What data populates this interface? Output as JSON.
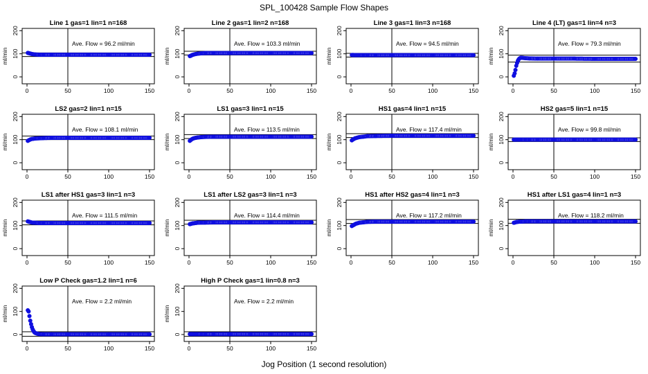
{
  "figure": {
    "title": "SPL_100428  Sample Flow Shapes",
    "xlabel": "Jog Position (1 second resolution)"
  },
  "colors": {
    "points": "#1010e0",
    "lines": "#000000",
    "background": "#ffffff"
  },
  "chart_data": [
    {
      "type": "scatter",
      "title": "Line 1 gas=1 lin=1 n=168",
      "ylabel": "ml/min",
      "xlim": [
        0,
        150
      ],
      "ylim": [
        -30,
        210
      ],
      "xticks": [
        0,
        50,
        100,
        150
      ],
      "yticks": [
        0,
        100,
        200
      ],
      "vline": 50,
      "hlines": [
        88,
        104
      ],
      "annotation": "Ave. Flow =  96.2  ml/min",
      "series": [
        {
          "x": [
            1,
            2,
            3,
            4,
            5,
            6,
            8,
            10,
            15,
            20,
            30,
            50,
            75,
            100,
            125,
            150
          ],
          "y": [
            104,
            103,
            102,
            101,
            100,
            99,
            98,
            97,
            96,
            96,
            96,
            96,
            96,
            96,
            96,
            96
          ]
        }
      ]
    },
    {
      "type": "scatter",
      "title": "Line 2 gas=1 lin=2 n=168",
      "ylabel": "ml/min",
      "xlim": [
        0,
        150
      ],
      "ylim": [
        -30,
        210
      ],
      "xticks": [
        0,
        50,
        100,
        150
      ],
      "yticks": [
        0,
        100,
        200
      ],
      "vline": 50,
      "hlines": [
        95,
        111
      ],
      "annotation": "Ave. Flow =  103.3  ml/min",
      "series": [
        {
          "x": [
            1,
            2,
            3,
            4,
            5,
            6,
            8,
            10,
            15,
            20,
            30,
            50,
            75,
            100,
            125,
            150
          ],
          "y": [
            90,
            91,
            93,
            95,
            96,
            97,
            99,
            100,
            102,
            103,
            103,
            103,
            103,
            103,
            103,
            103
          ]
        }
      ]
    },
    {
      "type": "scatter",
      "title": "Line 3 gas=1 lin=3 n=168",
      "ylabel": "ml/min",
      "xlim": [
        0,
        150
      ],
      "ylim": [
        -30,
        210
      ],
      "xticks": [
        0,
        50,
        100,
        150
      ],
      "yticks": [
        0,
        100,
        200
      ],
      "vline": 50,
      "hlines": [
        86,
        102
      ],
      "annotation": "Ave. Flow =  94.5  ml/min",
      "series": [
        {
          "x": [
            1,
            2,
            3,
            4,
            5,
            6,
            8,
            10,
            15,
            20,
            30,
            50,
            75,
            100,
            125,
            150
          ],
          "y": [
            95,
            95,
            95,
            94,
            94,
            94,
            94,
            94,
            94,
            94,
            94,
            94,
            94,
            94,
            94,
            94
          ]
        }
      ]
    },
    {
      "type": "scatter",
      "title": "Line 4 (LT) gas=1 lin=4 n=3",
      "ylabel": "ml/min",
      "xlim": [
        0,
        150
      ],
      "ylim": [
        -30,
        210
      ],
      "xticks": [
        0,
        50,
        100,
        150
      ],
      "yticks": [
        0,
        100,
        200
      ],
      "vline": 50,
      "hlines": [
        64,
        94
      ],
      "annotation": "Ave. Flow =  79.3  ml/min",
      "series": [
        {
          "x": [
            1,
            2,
            3,
            4,
            5,
            6,
            7,
            8,
            9,
            10,
            12,
            15,
            20,
            30,
            50,
            75,
            100,
            125,
            150
          ],
          "y": [
            5,
            15,
            30,
            48,
            60,
            70,
            76,
            80,
            82,
            83,
            82,
            81,
            80,
            79,
            79,
            79,
            78,
            78,
            78
          ]
        }
      ]
    },
    {
      "type": "scatter",
      "title": "LS2 gas=2 lin=1 n=15",
      "ylabel": "ml/min",
      "xlim": [
        0,
        150
      ],
      "ylim": [
        -30,
        210
      ],
      "xticks": [
        0,
        50,
        100,
        150
      ],
      "yticks": [
        0,
        100,
        200
      ],
      "vline": 50,
      "hlines": [
        100,
        116
      ],
      "annotation": "Ave. Flow =  108.1  ml/min",
      "series": [
        {
          "x": [
            1,
            2,
            3,
            4,
            5,
            6,
            8,
            10,
            15,
            20,
            30,
            50,
            75,
            100,
            125,
            150
          ],
          "y": [
            95,
            97,
            99,
            101,
            102,
            103,
            104,
            105,
            106,
            107,
            108,
            108,
            108,
            108,
            108,
            108
          ]
        }
      ]
    },
    {
      "type": "scatter",
      "title": "LS1 gas=3 lin=1 n=15",
      "ylabel": "ml/min",
      "xlim": [
        0,
        150
      ],
      "ylim": [
        -30,
        210
      ],
      "xticks": [
        0,
        50,
        100,
        150
      ],
      "yticks": [
        0,
        100,
        200
      ],
      "vline": 50,
      "hlines": [
        105,
        122
      ],
      "annotation": "Ave. Flow =  113.5  ml/min",
      "series": [
        {
          "x": [
            1,
            2,
            3,
            4,
            5,
            6,
            8,
            10,
            15,
            20,
            30,
            50,
            75,
            100,
            125,
            150
          ],
          "y": [
            95,
            98,
            101,
            103,
            105,
            106,
            108,
            109,
            111,
            112,
            113,
            113,
            113,
            113,
            113,
            113
          ]
        }
      ]
    },
    {
      "type": "scatter",
      "title": "HS1 gas=4 lin=1 n=15",
      "ylabel": "ml/min",
      "xlim": [
        0,
        150
      ],
      "ylim": [
        -30,
        210
      ],
      "xticks": [
        0,
        50,
        100,
        150
      ],
      "yticks": [
        0,
        100,
        200
      ],
      "vline": 50,
      "hlines": [
        109,
        126
      ],
      "annotation": "Ave. Flow =  117.4  ml/min",
      "series": [
        {
          "x": [
            1,
            2,
            3,
            4,
            5,
            6,
            8,
            10,
            15,
            20,
            30,
            50,
            75,
            100,
            125,
            150
          ],
          "y": [
            97,
            100,
            102,
            104,
            106,
            107,
            109,
            111,
            113,
            115,
            116,
            117,
            117,
            117,
            117,
            117
          ]
        }
      ]
    },
    {
      "type": "scatter",
      "title": "HS2 gas=5 lin=1 n=15",
      "ylabel": "ml/min",
      "xlim": [
        0,
        150
      ],
      "ylim": [
        -30,
        210
      ],
      "xticks": [
        0,
        50,
        100,
        150
      ],
      "yticks": [
        0,
        100,
        200
      ],
      "vline": 50,
      "hlines": [
        92,
        108
      ],
      "annotation": "Ave. Flow =  99.8  ml/min",
      "series": [
        {
          "x": [
            1,
            2,
            3,
            4,
            5,
            6,
            8,
            10,
            15,
            20,
            30,
            50,
            75,
            100,
            125,
            150
          ],
          "y": [
            100,
            100,
            100,
            100,
            100,
            100,
            100,
            100,
            100,
            100,
            100,
            100,
            100,
            100,
            100,
            100
          ]
        }
      ]
    },
    {
      "type": "scatter",
      "title": "LS1 after HS1 gas=3 lin=1 n=3",
      "ylabel": "ml/min",
      "xlim": [
        0,
        150
      ],
      "ylim": [
        -30,
        210
      ],
      "xticks": [
        0,
        50,
        100,
        150
      ],
      "yticks": [
        0,
        100,
        200
      ],
      "vline": 50,
      "hlines": [
        103,
        120
      ],
      "annotation": "Ave. Flow =  111.5  ml/min",
      "series": [
        {
          "x": [
            1,
            2,
            3,
            4,
            5,
            6,
            8,
            10,
            15,
            20,
            30,
            50,
            75,
            100,
            125,
            150
          ],
          "y": [
            118,
            117,
            116,
            115,
            114,
            113,
            112,
            112,
            111,
            111,
            111,
            111,
            111,
            111,
            111,
            111
          ]
        }
      ]
    },
    {
      "type": "scatter",
      "title": "LS1 after LS2 gas=3 lin=1 n=3",
      "ylabel": "ml/min",
      "xlim": [
        0,
        150
      ],
      "ylim": [
        -30,
        210
      ],
      "xticks": [
        0,
        50,
        100,
        150
      ],
      "yticks": [
        0,
        100,
        200
      ],
      "vline": 50,
      "hlines": [
        106,
        123
      ],
      "annotation": "Ave. Flow =  114.4  ml/min",
      "series": [
        {
          "x": [
            1,
            2,
            3,
            4,
            5,
            6,
            8,
            10,
            15,
            20,
            30,
            50,
            75,
            100,
            125,
            150
          ],
          "y": [
            106,
            107,
            108,
            109,
            110,
            110,
            111,
            112,
            113,
            113,
            114,
            114,
            114,
            114,
            114,
            114
          ]
        }
      ]
    },
    {
      "type": "scatter",
      "title": "HS1 after HS2 gas=4 lin=1 n=3",
      "ylabel": "ml/min",
      "xlim": [
        0,
        150
      ],
      "ylim": [
        -30,
        210
      ],
      "xticks": [
        0,
        50,
        100,
        150
      ],
      "yticks": [
        0,
        100,
        200
      ],
      "vline": 50,
      "hlines": [
        109,
        126
      ],
      "annotation": "Ave. Flow =  117.2  ml/min",
      "series": [
        {
          "x": [
            1,
            2,
            3,
            4,
            5,
            6,
            8,
            10,
            15,
            20,
            30,
            50,
            75,
            100,
            125,
            150
          ],
          "y": [
            98,
            100,
            102,
            104,
            106,
            108,
            110,
            112,
            114,
            116,
            117,
            117,
            117,
            117,
            117,
            117
          ]
        }
      ]
    },
    {
      "type": "scatter",
      "title": "HS1 after LS1 gas=4 lin=1 n=3",
      "ylabel": "ml/min",
      "xlim": [
        0,
        150
      ],
      "ylim": [
        -30,
        210
      ],
      "xticks": [
        0,
        50,
        100,
        150
      ],
      "yticks": [
        0,
        100,
        200
      ],
      "vline": 50,
      "hlines": [
        110,
        127
      ],
      "annotation": "Ave. Flow =  118.2  ml/min",
      "series": [
        {
          "x": [
            1,
            2,
            3,
            4,
            5,
            6,
            8,
            10,
            15,
            20,
            30,
            50,
            75,
            100,
            125,
            150
          ],
          "y": [
            112,
            113,
            114,
            115,
            116,
            116,
            117,
            117,
            118,
            118,
            118,
            118,
            118,
            118,
            118,
            118
          ]
        }
      ]
    },
    {
      "type": "scatter",
      "title": "Low P Check gas=1.2 lin=1 n=6",
      "ylabel": "ml/min",
      "xlim": [
        0,
        150
      ],
      "ylim": [
        -30,
        210
      ],
      "xticks": [
        0,
        50,
        100,
        150
      ],
      "yticks": [
        0,
        100,
        200
      ],
      "vline": 50,
      "hlines": [
        -8,
        12
      ],
      "annotation": "Ave. Flow =  2.2  ml/min",
      "series": [
        {
          "x": [
            1,
            2,
            3,
            4,
            5,
            6,
            7,
            8,
            9,
            10,
            12,
            15,
            20,
            30,
            50,
            75,
            100,
            125,
            150
          ],
          "y": [
            105,
            100,
            80,
            60,
            45,
            32,
            22,
            15,
            10,
            7,
            4,
            2,
            1,
            1,
            1,
            1,
            1,
            1,
            1
          ]
        }
      ]
    },
    {
      "type": "scatter",
      "title": "High P Check gas=1 lin=0.8 n=3",
      "ylabel": "ml/min",
      "xlim": [
        0,
        150
      ],
      "ylim": [
        -30,
        210
      ],
      "xticks": [
        0,
        50,
        100,
        150
      ],
      "yticks": [
        0,
        100,
        200
      ],
      "vline": 50,
      "hlines": [
        -8,
        12
      ],
      "annotation": "Ave. Flow =  2.2  ml/min",
      "series": [
        {
          "x": [
            1,
            2,
            3,
            4,
            5,
            6,
            8,
            10,
            15,
            20,
            30,
            50,
            75,
            100,
            125,
            150
          ],
          "y": [
            2,
            2,
            2,
            2,
            2,
            2,
            2,
            2,
            2,
            2,
            2,
            2,
            2,
            2,
            2,
            2
          ]
        }
      ]
    }
  ]
}
